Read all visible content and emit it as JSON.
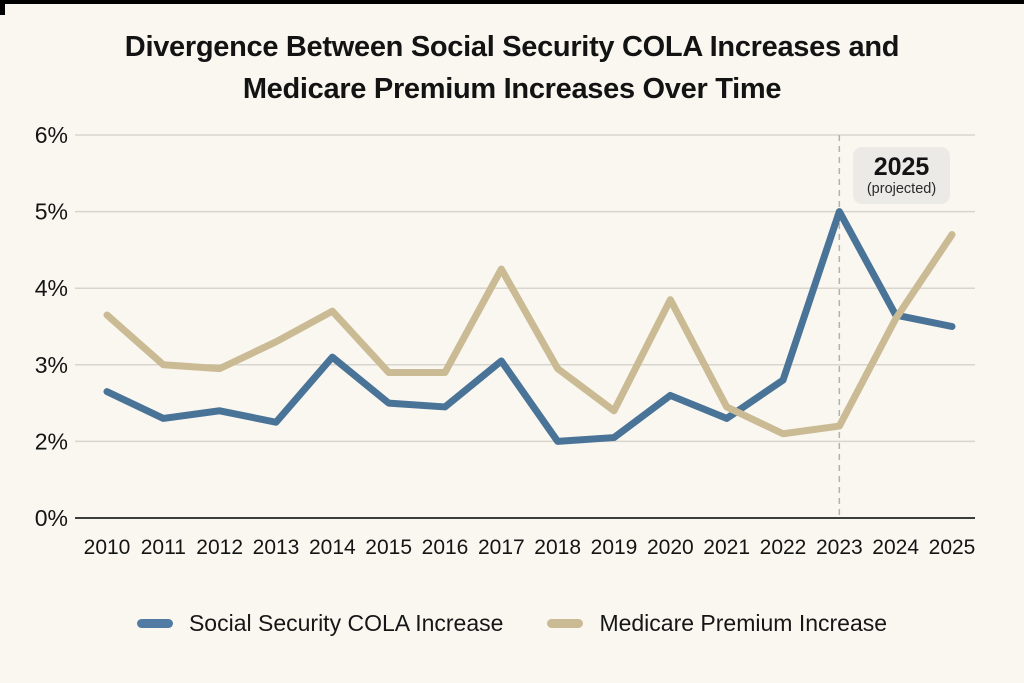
{
  "page": {
    "background": "#f9f7f0"
  },
  "header": {
    "title_line1": "Divergence Between Social Security COLA Increases and",
    "title_line2": "Medicare Premium Increases Over Time"
  },
  "annotation": {
    "year": "2025",
    "note": "(projected)"
  },
  "legend": {
    "items": [
      {
        "label": "Social Security COLA Increase",
        "color": "#527ba3"
      },
      {
        "label": "Medicare Premium Increase",
        "color": "#cbbb94"
      }
    ]
  },
  "chart_data": {
    "type": "line",
    "title": "Divergence Between Social Security COLA Increases and Medicare Premium Increases Over Time",
    "x": [
      2010,
      2011,
      2012,
      2013,
      2014,
      2015,
      2016,
      2017,
      2018,
      2019,
      2020,
      2021,
      2022,
      2023,
      2024,
      2025
    ],
    "series": [
      {
        "name": "Social Security COLA Increase",
        "color": "#4a7398",
        "values": [
          2.65,
          2.3,
          2.4,
          2.25,
          3.1,
          2.5,
          2.45,
          3.05,
          2.0,
          2.05,
          2.6,
          2.3,
          2.8,
          5.0,
          3.65,
          3.5
        ]
      },
      {
        "name": "Medicare Premium Increase",
        "color": "#cbbb94",
        "values": [
          3.65,
          3.0,
          2.95,
          3.3,
          3.7,
          2.9,
          2.9,
          4.25,
          2.95,
          2.4,
          3.85,
          2.45,
          2.1,
          2.2,
          3.6,
          4.7
        ]
      }
    ],
    "y_axis": {
      "tick_labels": [
        "6%",
        "5%",
        "4%",
        "3%",
        "2%",
        "0%"
      ],
      "tick_values": [
        6,
        5,
        4,
        3,
        2,
        0
      ]
    },
    "ylim": [
      0,
      6
    ],
    "grid": true,
    "legend_position": "bottom",
    "dashed_line_at_x": 2023,
    "annotation": {
      "line1": "2025",
      "line2": "(projected)",
      "position": "top-right"
    }
  },
  "colors": {
    "background": "#f9f7f0",
    "grid": "#d8d5ce",
    "axis": "#3d3d3d",
    "dashed_line": "#b3b1ab",
    "tick_text": "#141414",
    "annotation_bg": "#eceae6"
  }
}
